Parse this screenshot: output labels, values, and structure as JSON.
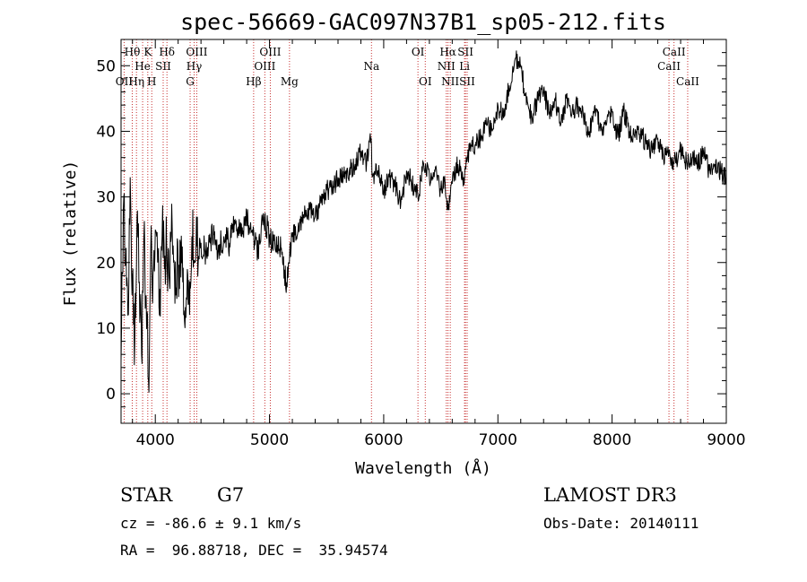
{
  "chart_data": {
    "type": "line",
    "title": "spec-56669-GAC097N37B1_sp05-212.fits",
    "xlabel": "Wavelength (Å)",
    "ylabel": "Flux (relative)",
    "xlim": [
      3700,
      9000
    ],
    "ylim": [
      -4.5,
      54
    ],
    "xticks": [
      4000,
      5000,
      6000,
      7000,
      8000,
      9000
    ],
    "yticks": [
      0,
      10,
      20,
      30,
      40,
      50
    ],
    "series": [
      {
        "name": "flux",
        "x": [
          3700,
          3720,
          3740,
          3760,
          3780,
          3800,
          3820,
          3840,
          3860,
          3880,
          3900,
          3920,
          3940,
          3960,
          3980,
          4000,
          4020,
          4040,
          4060,
          4080,
          4100,
          4120,
          4140,
          4160,
          4180,
          4200,
          4220,
          4240,
          4260,
          4280,
          4300,
          4320,
          4340,
          4360,
          4380,
          4400,
          4450,
          4500,
          4550,
          4600,
          4650,
          4700,
          4750,
          4800,
          4850,
          4900,
          4950,
          5000,
          5050,
          5100,
          5150,
          5170,
          5200,
          5250,
          5300,
          5350,
          5400,
          5450,
          5500,
          5550,
          5600,
          5650,
          5700,
          5750,
          5800,
          5850,
          5890,
          5900,
          5950,
          6000,
          6050,
          6100,
          6150,
          6200,
          6250,
          6300,
          6350,
          6400,
          6450,
          6500,
          6530,
          6563,
          6600,
          6650,
          6700,
          6750,
          6800,
          6850,
          6900,
          6950,
          7000,
          7050,
          7100,
          7150,
          7200,
          7250,
          7300,
          7350,
          7400,
          7450,
          7500,
          7550,
          7600,
          7650,
          7700,
          7750,
          7800,
          7850,
          7900,
          7950,
          8000,
          8050,
          8100,
          8150,
          8200,
          8250,
          8300,
          8350,
          8400,
          8450,
          8498,
          8542,
          8600,
          8662,
          8700,
          8750,
          8800,
          8850,
          8900,
          8950,
          9000
        ],
        "y": [
          5,
          28,
          20,
          12,
          33,
          18,
          8,
          27,
          17,
          6,
          24,
          15,
          2,
          22,
          18,
          25,
          20,
          16,
          24,
          19,
          22,
          18,
          24,
          20,
          15,
          20,
          23,
          17,
          10,
          19,
          12,
          24,
          20,
          27,
          21,
          23,
          21,
          24,
          22,
          24,
          23,
          26,
          24,
          27,
          25,
          21,
          27,
          24,
          22,
          22,
          17,
          20,
          24,
          25,
          27,
          28,
          27,
          29,
          31,
          31,
          33,
          33,
          34,
          35,
          37,
          35,
          39,
          33,
          34,
          31,
          33,
          32,
          29,
          34,
          32,
          30,
          35,
          33,
          34,
          31,
          33,
          28,
          32,
          35,
          33,
          37,
          38,
          39,
          41,
          40,
          44,
          42,
          47,
          51,
          50,
          44,
          42,
          45,
          46,
          43,
          45,
          41,
          45,
          43,
          44,
          42,
          40,
          44,
          40,
          41,
          43,
          39,
          43,
          40,
          39,
          40,
          38,
          37,
          39,
          36,
          37,
          35,
          37,
          35,
          36,
          35,
          37,
          34,
          35,
          34,
          33
        ]
      }
    ],
    "line_markers": [
      {
        "label": "Hθ",
        "x": 3798,
        "row": 1
      },
      {
        "label": "OII",
        "x": 3727,
        "row": 3
      },
      {
        "label": "Hη",
        "x": 3835,
        "row": 3
      },
      {
        "label": "He",
        "x": 3889,
        "row": 2
      },
      {
        "label": "K",
        "x": 3934,
        "row": 1
      },
      {
        "label": "H",
        "x": 3969,
        "row": 3
      },
      {
        "label": "SII",
        "x": 4069,
        "row": 2
      },
      {
        "label": "Hδ",
        "x": 4102,
        "row": 1
      },
      {
        "label": "OIII",
        "x": 4363,
        "row": 1
      },
      {
        "label": "Hγ",
        "x": 4340,
        "row": 2
      },
      {
        "label": "G",
        "x": 4305,
        "row": 3
      },
      {
        "label": "Hβ",
        "x": 4861,
        "row": 3
      },
      {
        "label": "OIII",
        "x": 5007,
        "row": 1
      },
      {
        "label": "OIII",
        "x": 4959,
        "row": 2
      },
      {
        "label": "Mg",
        "x": 5175,
        "row": 3
      },
      {
        "label": "Na",
        "x": 5893,
        "row": 2
      },
      {
        "label": "OI",
        "x": 6300,
        "row": 1
      },
      {
        "label": "OI",
        "x": 6364,
        "row": 3
      },
      {
        "label": "Hα",
        "x": 6563,
        "row": 1
      },
      {
        "label": "NII",
        "x": 6548,
        "row": 2
      },
      {
        "label": "NII",
        "x": 6583,
        "row": 3
      },
      {
        "label": "SII",
        "x": 6716,
        "row": 1
      },
      {
        "label": "Li",
        "x": 6708,
        "row": 2
      },
      {
        "label": "SII",
        "x": 6731,
        "row": 3
      },
      {
        "label": "CaII",
        "x": 8542,
        "row": 1
      },
      {
        "label": "CaII",
        "x": 8498,
        "row": 2
      },
      {
        "label": "CaII",
        "x": 8662,
        "row": 3
      }
    ],
    "line_color": "#000000",
    "marker_color": "#c83232"
  },
  "info": {
    "class": "STAR",
    "subclass": "G7",
    "survey": "LAMOST DR3",
    "cz": "cz = -86.6 ± 9.1 km/s",
    "obs_date": "Obs-Date: 20140111",
    "coords": "RA =  96.88718, DEC =  35.94574"
  }
}
